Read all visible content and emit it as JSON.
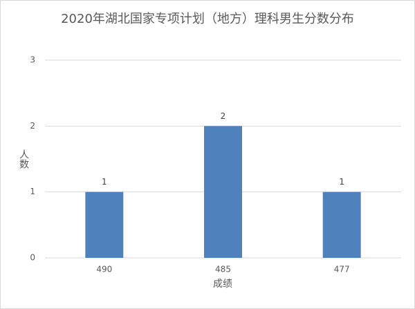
{
  "chart_data": {
    "type": "bar",
    "title": "2020年湖北国家专项计划（地方）理科男生分数分布",
    "x_label": "成绩",
    "y_label": "人数",
    "categories": [
      "490",
      "485",
      "477"
    ],
    "values": [
      1,
      2,
      1
    ],
    "color": "#4f81bd",
    "ylim": [
      0,
      3
    ],
    "yticks": [
      0,
      1,
      2,
      3
    ],
    "grid": true
  }
}
